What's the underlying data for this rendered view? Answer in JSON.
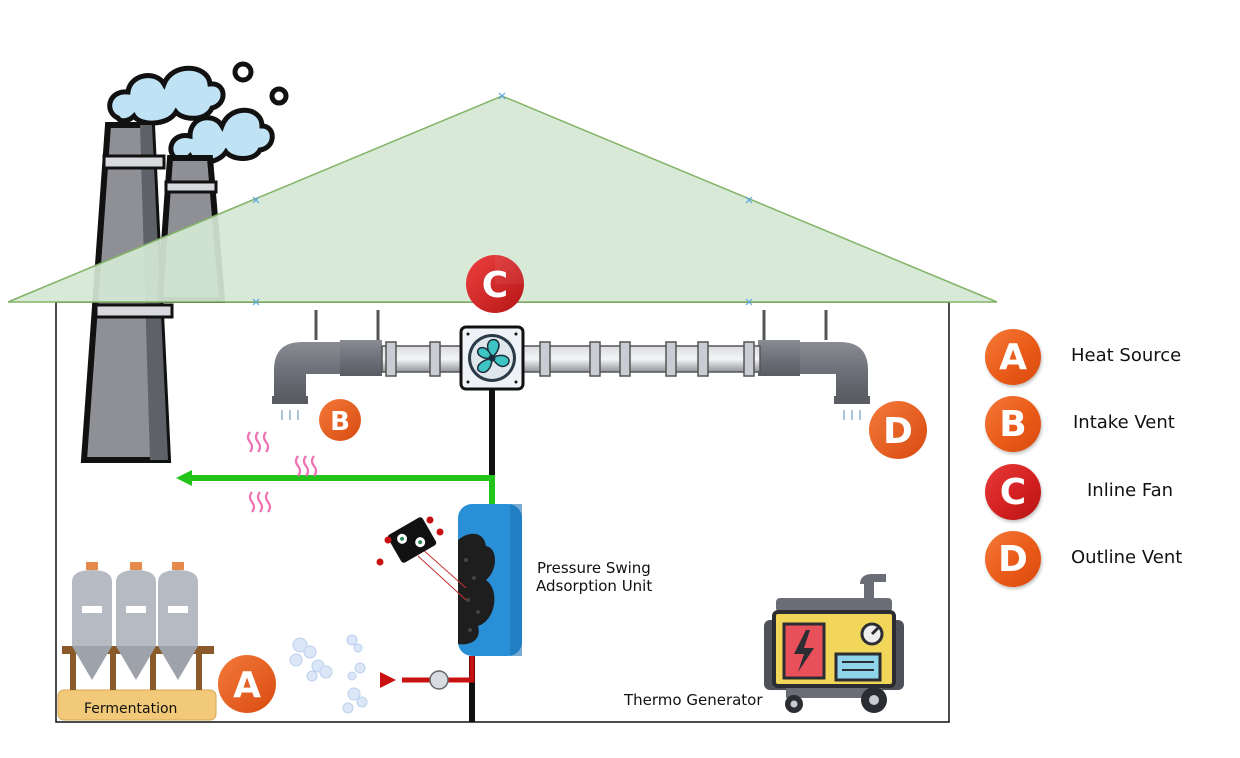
{
  "markers": {
    "heat_source": "A",
    "intake_vent": "B",
    "inline_fan": "C",
    "outline_vent": "D"
  },
  "labels": {
    "psa_unit_line1": "Pressure Swing",
    "psa_unit_line2": "Adsorption Unit",
    "thermo_generator": "Thermo Generator",
    "fermentation": "Fermentation"
  },
  "legend": [
    {
      "letter": "A",
      "label": "Heat Source",
      "color": "#ea5a18"
    },
    {
      "letter": "B",
      "label": "Intake Vent",
      "color": "#ea5a18"
    },
    {
      "letter": "C",
      "label": "Inline Fan",
      "color": "#d42020"
    },
    {
      "letter": "D",
      "label": "Outline Vent",
      "color": "#ea5a18"
    }
  ],
  "colors": {
    "roof": "#d5e8d4",
    "roof_stroke": "#82b366",
    "pipe": "#8a8c94",
    "green_flow": "#22c41a",
    "red_flow": "#c81010",
    "psa_blue": "#2990d8",
    "marker_orange": "#ea5a18",
    "marker_red": "#d42020",
    "generator_yellow": "#f2d65a"
  }
}
